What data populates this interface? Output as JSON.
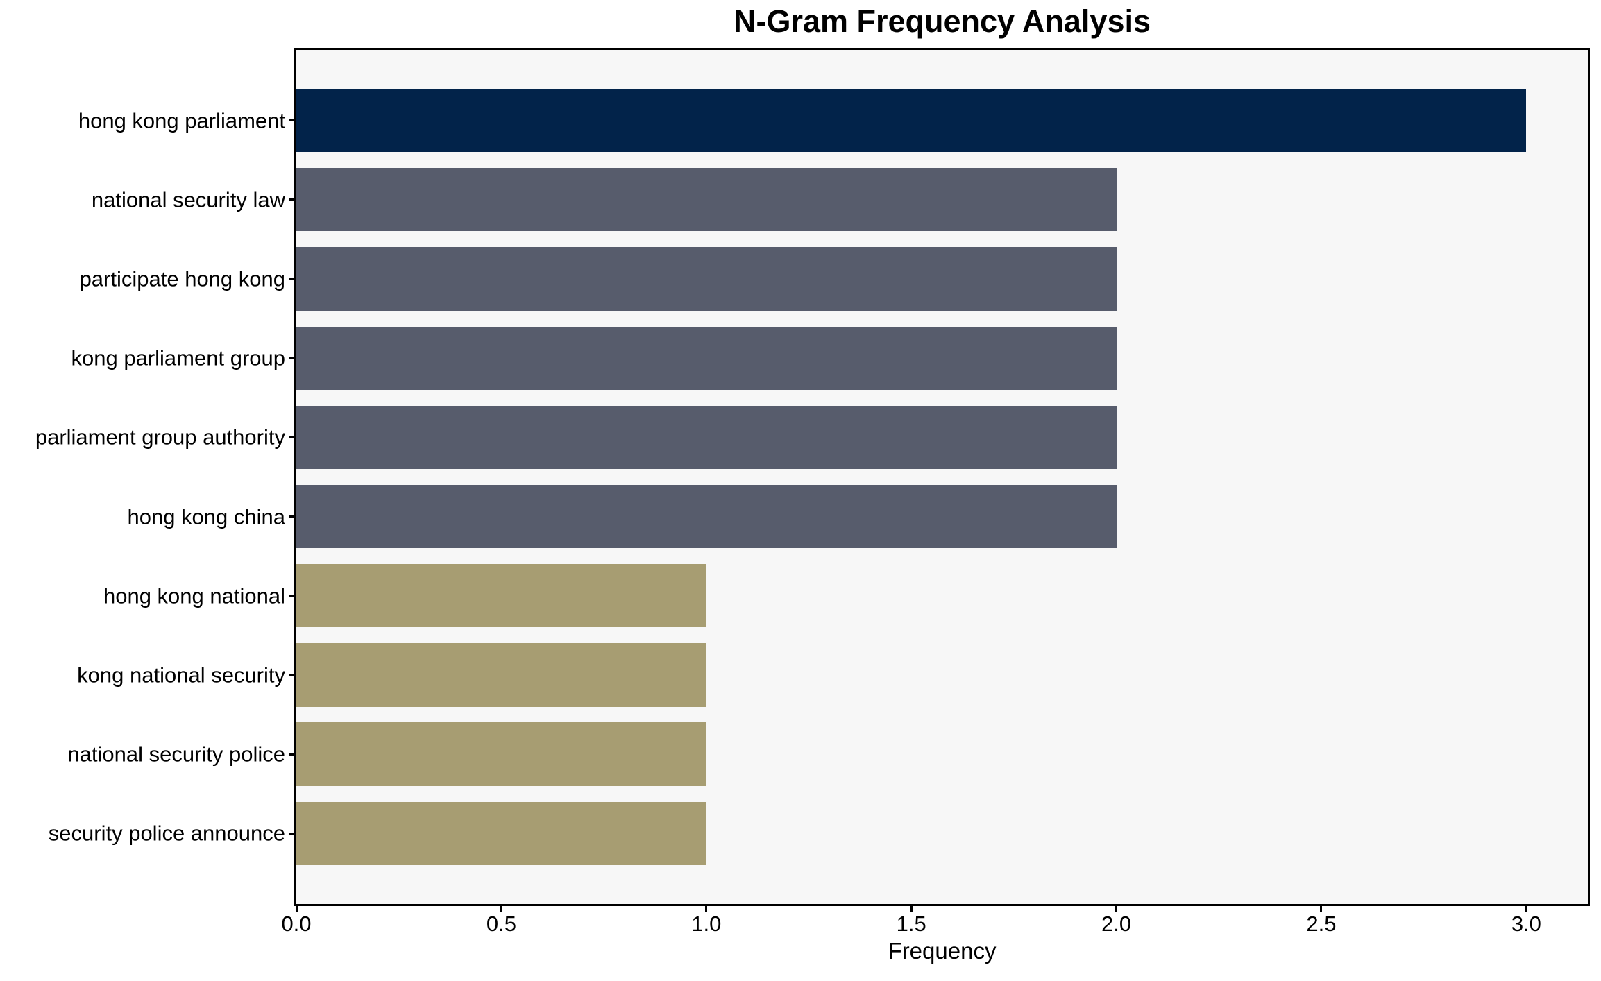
{
  "chart_data": {
    "type": "bar",
    "orientation": "horizontal",
    "title": "N-Gram Frequency Analysis",
    "xlabel": "Frequency",
    "ylabel": "",
    "categories": [
      "hong kong parliament",
      "national security law",
      "participate hong kong",
      "kong parliament group",
      "parliament group authority",
      "hong kong china",
      "hong kong national",
      "kong national security",
      "national security police",
      "security police announce"
    ],
    "values": [
      3,
      2,
      2,
      2,
      2,
      2,
      1,
      1,
      1,
      1
    ],
    "xlim": [
      0,
      3.15
    ],
    "xticks": [
      0,
      0.5,
      1,
      1.5,
      2,
      2.5,
      3
    ],
    "xtick_labels": [
      "0.0",
      "0.5",
      "1.0",
      "1.5",
      "2.0",
      "2.5",
      "3.0"
    ],
    "grid": false,
    "legend_position": "none",
    "bar_colors": [
      "#02234a",
      "#575c6c",
      "#575c6c",
      "#575c6c",
      "#575c6c",
      "#575c6c",
      "#a79d72",
      "#a79d72",
      "#a79d72",
      "#a79d72"
    ],
    "colors": {
      "navy_bar": "#02234a",
      "slate_bar": "#575c6c",
      "olive_bar": "#a79d72",
      "plot_background": "#f7f7f7",
      "figure_background": "#ffffff",
      "frame": "#000000",
      "text": "#000000"
    }
  }
}
